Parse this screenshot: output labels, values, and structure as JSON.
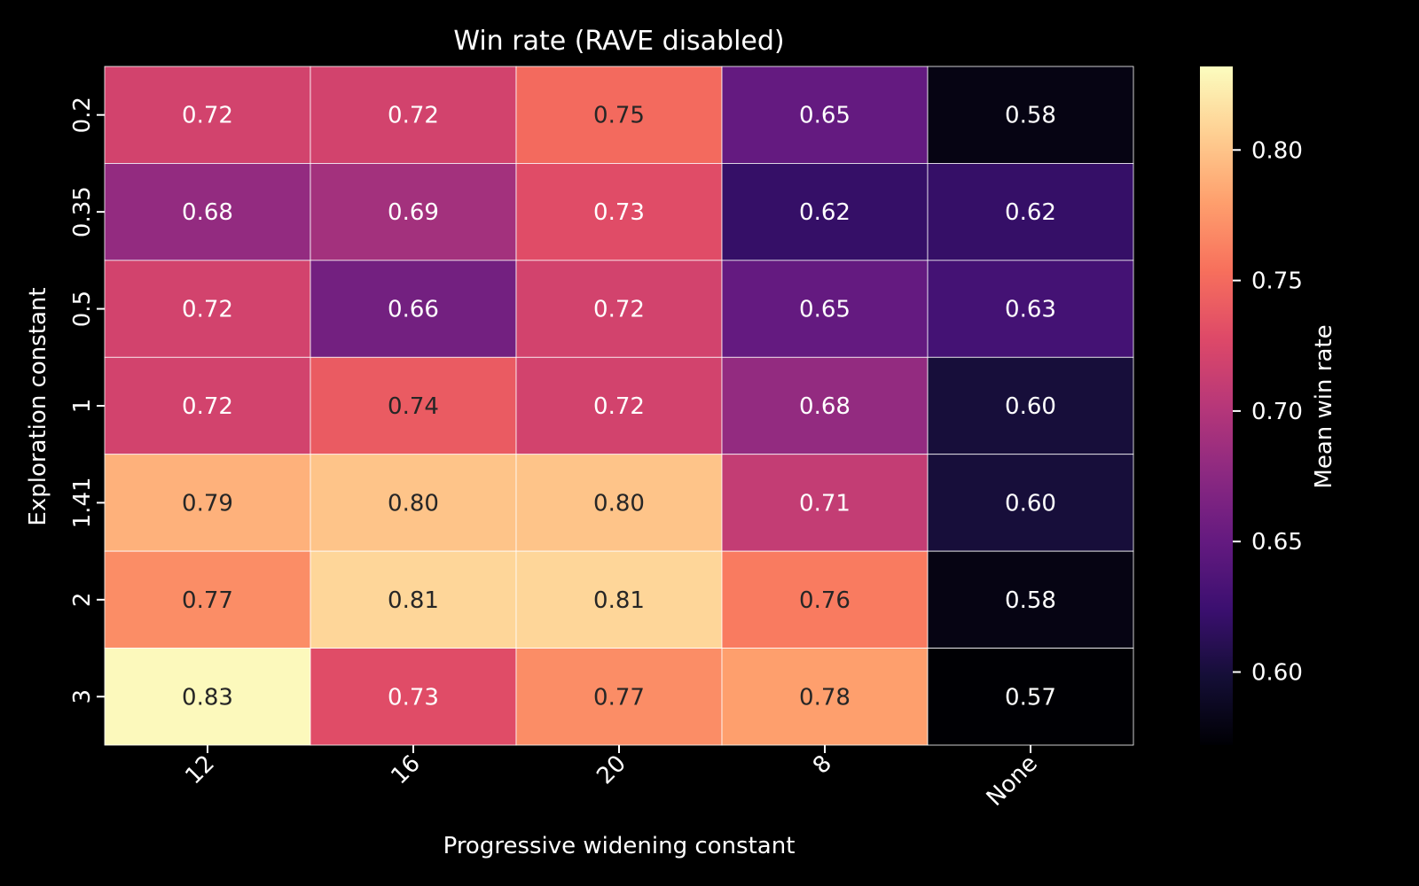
{
  "chart_data": {
    "type": "heatmap",
    "title": "Win rate (RAVE disabled)",
    "xlabel": "Progressive widening constant",
    "ylabel": "Exploration constant",
    "x_categories": [
      "12",
      "16",
      "20",
      "8",
      "None"
    ],
    "y_categories": [
      "0.2",
      "0.35",
      "0.5",
      "1",
      "1.41",
      "2",
      "3"
    ],
    "values": [
      [
        0.72,
        0.72,
        0.75,
        0.65,
        0.58
      ],
      [
        0.68,
        0.69,
        0.73,
        0.62,
        0.62
      ],
      [
        0.72,
        0.66,
        0.72,
        0.65,
        0.63
      ],
      [
        0.72,
        0.74,
        0.72,
        0.68,
        0.6
      ],
      [
        0.79,
        0.8,
        0.8,
        0.71,
        0.6
      ],
      [
        0.77,
        0.81,
        0.81,
        0.76,
        0.58
      ],
      [
        0.83,
        0.73,
        0.77,
        0.78,
        0.57
      ]
    ],
    "colorbar": {
      "label": "Mean win rate",
      "ticks": [
        "0.60",
        "0.65",
        "0.70",
        "0.75",
        "0.80"
      ],
      "range": [
        0.572,
        0.832
      ],
      "colormap": "magma"
    },
    "grid": false,
    "background": "#000000"
  }
}
